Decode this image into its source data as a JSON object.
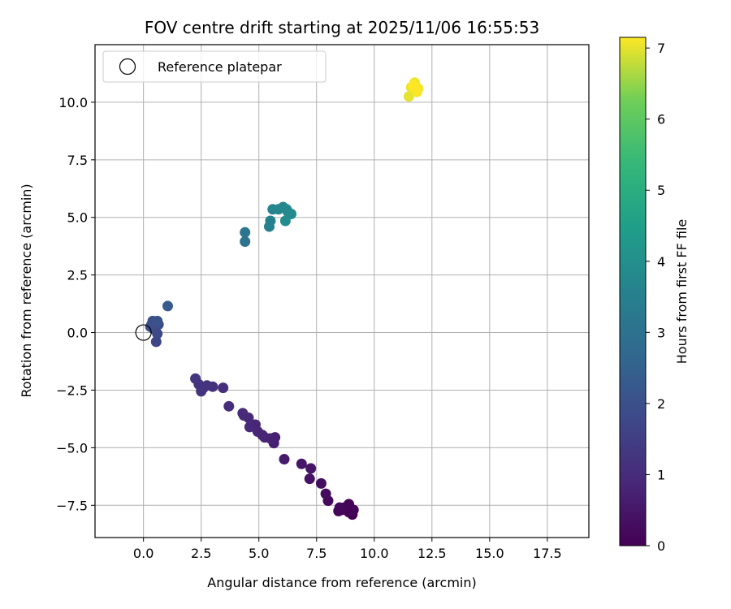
{
  "chart_data": {
    "type": "scatter",
    "title": "FOV centre drift starting at 2025/11/06 16:55:53",
    "xlabel": "Angular distance from reference (arcmin)",
    "ylabel": "Rotation from reference (arcmin)",
    "xlim": [
      -2.1,
      19.3
    ],
    "ylim": [
      -8.9,
      12.5
    ],
    "xticks": [
      0.0,
      2.5,
      5.0,
      7.5,
      10.0,
      12.5,
      15.0,
      17.5
    ],
    "yticks": [
      -7.5,
      -5.0,
      -2.5,
      0.0,
      2.5,
      5.0,
      7.5,
      10.0
    ],
    "xtick_labels": [
      "0.0",
      "2.5",
      "5.0",
      "7.5",
      "10.0",
      "12.5",
      "15.0",
      "17.5"
    ],
    "ytick_labels": [
      "−7.5",
      "−5.0",
      "−2.5",
      "0.0",
      "2.5",
      "5.0",
      "7.5",
      "10.0"
    ],
    "grid": true,
    "legend": {
      "placement": "top-left",
      "entries": [
        "Reference platepar"
      ]
    },
    "reference_point": {
      "x": 0.0,
      "y": 0.0
    },
    "colorbar": {
      "label": "Hours from first FF file",
      "min": 0,
      "max": 7.15,
      "ticks": [
        0,
        1,
        2,
        3,
        4,
        5,
        6,
        7
      ],
      "tick_labels": [
        "0",
        "1",
        "2",
        "3",
        "4",
        "5",
        "6",
        "7"
      ],
      "colormap": "viridis"
    },
    "points": [
      {
        "x": 9.05,
        "y": -7.9,
        "h": 0.0
      },
      {
        "x": 8.9,
        "y": -7.8,
        "h": 0.02
      },
      {
        "x": 9.1,
        "y": -7.7,
        "h": 0.04
      },
      {
        "x": 8.7,
        "y": -7.6,
        "h": 0.06
      },
      {
        "x": 8.9,
        "y": -7.45,
        "h": 0.08
      },
      {
        "x": 8.45,
        "y": -7.75,
        "h": 0.1
      },
      {
        "x": 8.6,
        "y": -7.7,
        "h": 0.12
      },
      {
        "x": 8.5,
        "y": -7.6,
        "h": 0.14
      },
      {
        "x": 8.0,
        "y": -7.3,
        "h": 0.2
      },
      {
        "x": 7.9,
        "y": -7.0,
        "h": 0.25
      },
      {
        "x": 7.7,
        "y": -6.55,
        "h": 0.32
      },
      {
        "x": 7.2,
        "y": -6.35,
        "h": 0.4
      },
      {
        "x": 7.25,
        "y": -5.9,
        "h": 0.45
      },
      {
        "x": 6.85,
        "y": -5.7,
        "h": 0.5
      },
      {
        "x": 6.1,
        "y": -5.5,
        "h": 0.6
      },
      {
        "x": 5.7,
        "y": -4.55,
        "h": 0.7
      },
      {
        "x": 5.65,
        "y": -4.8,
        "h": 0.73
      },
      {
        "x": 5.5,
        "y": -4.6,
        "h": 0.76
      },
      {
        "x": 5.25,
        "y": -4.55,
        "h": 0.8
      },
      {
        "x": 5.15,
        "y": -4.45,
        "h": 0.82
      },
      {
        "x": 4.95,
        "y": -4.3,
        "h": 0.85
      },
      {
        "x": 4.85,
        "y": -4.0,
        "h": 0.88
      },
      {
        "x": 4.6,
        "y": -4.1,
        "h": 0.9
      },
      {
        "x": 4.55,
        "y": -3.7,
        "h": 0.93
      },
      {
        "x": 4.35,
        "y": -3.6,
        "h": 0.96
      },
      {
        "x": 4.3,
        "y": -3.5,
        "h": 0.98
      },
      {
        "x": 3.7,
        "y": -3.2,
        "h": 1.05
      },
      {
        "x": 3.45,
        "y": -2.4,
        "h": 1.1
      },
      {
        "x": 3.0,
        "y": -2.35,
        "h": 1.15
      },
      {
        "x": 2.75,
        "y": -2.3,
        "h": 1.18
      },
      {
        "x": 2.6,
        "y": -2.4,
        "h": 1.2
      },
      {
        "x": 2.5,
        "y": -2.55,
        "h": 1.22
      },
      {
        "x": 2.4,
        "y": -2.25,
        "h": 1.24
      },
      {
        "x": 2.25,
        "y": -2.0,
        "h": 1.26
      },
      {
        "x": 0.55,
        "y": -0.4,
        "h": 1.7
      },
      {
        "x": 0.6,
        "y": -0.05,
        "h": 1.75
      },
      {
        "x": 0.45,
        "y": 0.15,
        "h": 1.8
      },
      {
        "x": 0.65,
        "y": 0.35,
        "h": 1.85
      },
      {
        "x": 0.35,
        "y": 0.35,
        "h": 1.9
      },
      {
        "x": 0.3,
        "y": 0.25,
        "h": 1.95
      },
      {
        "x": 0.4,
        "y": 0.5,
        "h": 2.0
      },
      {
        "x": 0.6,
        "y": 0.5,
        "h": 2.05
      },
      {
        "x": 1.05,
        "y": 1.15,
        "h": 2.3
      },
      {
        "x": 4.4,
        "y": 3.95,
        "h": 3.1
      },
      {
        "x": 4.4,
        "y": 4.35,
        "h": 3.15
      },
      {
        "x": 5.45,
        "y": 4.6,
        "h": 3.5
      },
      {
        "x": 5.5,
        "y": 4.85,
        "h": 3.55
      },
      {
        "x": 5.6,
        "y": 5.35,
        "h": 3.65
      },
      {
        "x": 5.85,
        "y": 5.35,
        "h": 3.7
      },
      {
        "x": 6.05,
        "y": 5.45,
        "h": 3.75
      },
      {
        "x": 6.2,
        "y": 5.35,
        "h": 3.8
      },
      {
        "x": 6.25,
        "y": 5.25,
        "h": 3.82
      },
      {
        "x": 6.4,
        "y": 5.15,
        "h": 3.85
      },
      {
        "x": 6.15,
        "y": 4.85,
        "h": 3.9
      },
      {
        "x": 11.5,
        "y": 10.25,
        "h": 7.0
      },
      {
        "x": 11.6,
        "y": 10.65,
        "h": 7.05
      },
      {
        "x": 11.75,
        "y": 10.85,
        "h": 7.08
      },
      {
        "x": 11.9,
        "y": 10.6,
        "h": 7.1
      },
      {
        "x": 11.85,
        "y": 10.45,
        "h": 7.12
      },
      {
        "x": 11.7,
        "y": 10.7,
        "h": 7.15
      }
    ]
  }
}
